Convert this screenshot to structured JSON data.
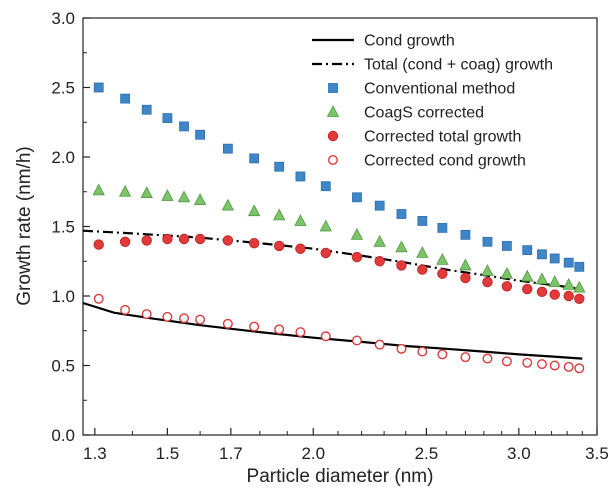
{
  "chart_data": {
    "type": "scatter",
    "xlabel": "Particle diameter (nm)",
    "ylabel": "Growth rate (nm/h)",
    "x_scale": "log",
    "xlim": [
      1.27,
      3.5
    ],
    "ylim": [
      0.0,
      3.0
    ],
    "x_ticks": [
      "1.3",
      "1.5",
      "1.7",
      "2.0",
      "2.5",
      "3.0",
      "3.5"
    ],
    "y_ticks": [
      "0.0",
      "0.5",
      "1.0",
      "1.5",
      "2.0",
      "2.5",
      "3.0"
    ],
    "grid": false,
    "legend_position": "top-right",
    "x": [
      1.31,
      1.38,
      1.44,
      1.5,
      1.55,
      1.6,
      1.69,
      1.78,
      1.87,
      1.95,
      2.05,
      2.18,
      2.28,
      2.38,
      2.48,
      2.58,
      2.7,
      2.82,
      2.93,
      3.05,
      3.14,
      3.22,
      3.31,
      3.38
    ],
    "series": [
      {
        "name": "Cond growth",
        "style": "solid-line",
        "color": "#000000",
        "x": [
          1.27,
          1.35,
          1.45,
          1.6,
          1.8,
          2.0,
          2.2,
          2.4,
          2.6,
          2.8,
          3.0,
          3.2,
          3.4
        ],
        "values": [
          0.95,
          0.88,
          0.84,
          0.79,
          0.74,
          0.7,
          0.67,
          0.64,
          0.62,
          0.6,
          0.58,
          0.565,
          0.55
        ]
      },
      {
        "name": "Total (cond + coag) growth",
        "style": "dash-dot-line",
        "color": "#000000",
        "x": [
          1.27,
          1.4,
          1.6,
          1.8,
          2.0,
          2.2,
          2.4,
          2.6,
          2.8,
          3.0,
          3.2,
          3.4
        ],
        "values": [
          1.47,
          1.45,
          1.42,
          1.38,
          1.34,
          1.29,
          1.24,
          1.19,
          1.15,
          1.11,
          1.08,
          1.05
        ]
      },
      {
        "name": "Conventional method",
        "style": "square",
        "color": "#3f86c8",
        "values": [
          2.5,
          2.42,
          2.34,
          2.28,
          2.22,
          2.16,
          2.06,
          1.99,
          1.93,
          1.86,
          1.79,
          1.71,
          1.65,
          1.59,
          1.54,
          1.49,
          1.44,
          1.39,
          1.36,
          1.33,
          1.3,
          1.27,
          1.24,
          1.21
        ]
      },
      {
        "name": "CoagS corrected",
        "style": "triangle",
        "color": "#7cc36a",
        "values": [
          1.76,
          1.75,
          1.74,
          1.72,
          1.71,
          1.69,
          1.65,
          1.61,
          1.58,
          1.54,
          1.5,
          1.44,
          1.39,
          1.35,
          1.31,
          1.26,
          1.22,
          1.18,
          1.16,
          1.14,
          1.12,
          1.1,
          1.08,
          1.06
        ]
      },
      {
        "name": "Corrected total growth",
        "style": "filled-circle",
        "color": "#e23a3a",
        "values": [
          1.37,
          1.39,
          1.4,
          1.41,
          1.41,
          1.41,
          1.4,
          1.38,
          1.36,
          1.34,
          1.31,
          1.28,
          1.25,
          1.22,
          1.19,
          1.16,
          1.13,
          1.1,
          1.07,
          1.05,
          1.03,
          1.01,
          1.0,
          0.98
        ]
      },
      {
        "name": "Corrected cond growth",
        "style": "open-circle",
        "color": "#d93a3a",
        "values": [
          0.98,
          0.9,
          0.87,
          0.85,
          0.84,
          0.83,
          0.8,
          0.78,
          0.76,
          0.74,
          0.71,
          0.68,
          0.65,
          0.62,
          0.6,
          0.58,
          0.56,
          0.55,
          0.53,
          0.52,
          0.51,
          0.5,
          0.49,
          0.48
        ]
      }
    ]
  }
}
